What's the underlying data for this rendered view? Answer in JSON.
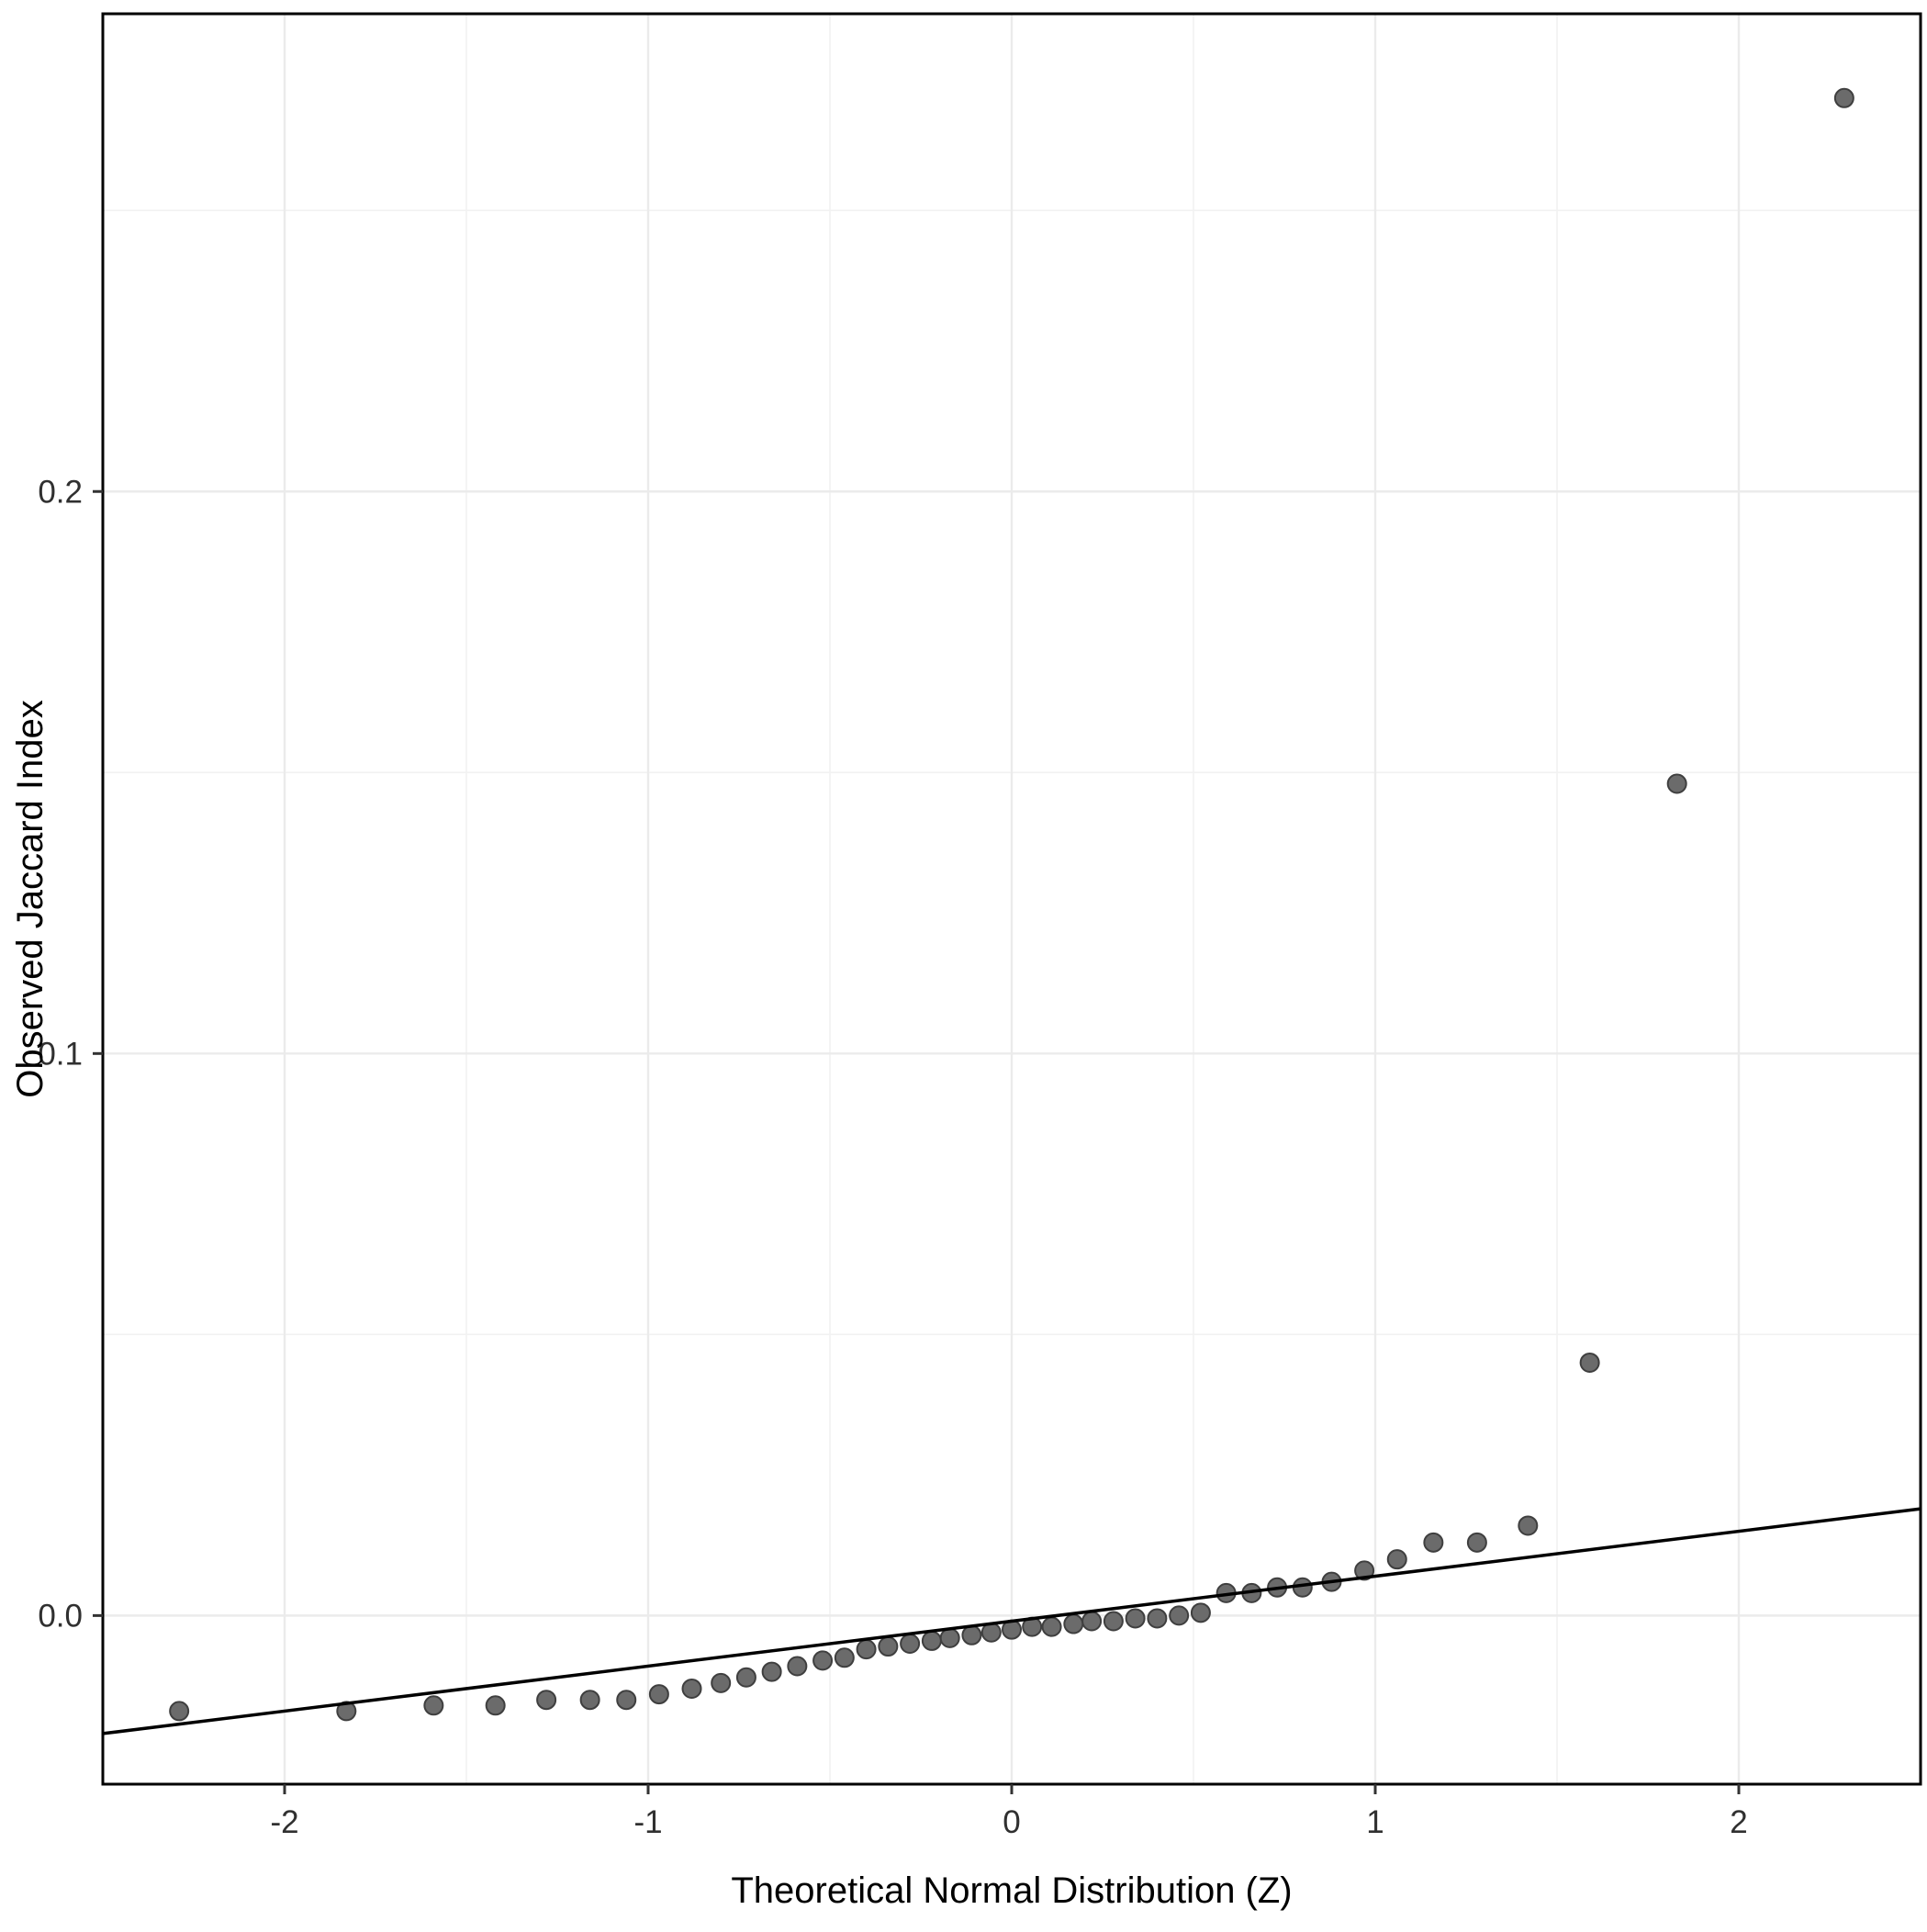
{
  "chart_data": {
    "type": "scatter",
    "title": "",
    "xlabel": "Theoretical Normal Distribution (Z)",
    "ylabel": "Observed Jaccard Index",
    "xlim": [
      -2.5,
      2.5
    ],
    "ylim": [
      -0.03,
      0.285
    ],
    "x_ticks": [
      -2,
      -1,
      0,
      1,
      2
    ],
    "x_tick_labels": [
      "-2",
      "-1",
      "0",
      "1",
      "2"
    ],
    "x_minor_ticks": [
      -1.5,
      -0.5,
      0.5,
      1.5
    ],
    "y_ticks": [
      0.0,
      0.1,
      0.2
    ],
    "y_tick_labels": [
      "0.0",
      "0.1",
      "0.2"
    ],
    "y_minor_ticks": [
      0.05,
      0.15,
      0.25
    ],
    "grid": "on",
    "legend": "none",
    "reference_line": {
      "slope": 0.008,
      "intercept": -0.001
    },
    "points": [
      [
        -2.29,
        -0.017
      ],
      [
        -1.83,
        -0.017
      ],
      [
        -1.59,
        -0.016
      ],
      [
        -1.42,
        -0.016
      ],
      [
        -1.28,
        -0.015
      ],
      [
        -1.16,
        -0.015
      ],
      [
        -1.06,
        -0.015
      ],
      [
        -0.97,
        -0.014
      ],
      [
        -0.88,
        -0.013
      ],
      [
        -0.8,
        -0.012
      ],
      [
        -0.73,
        -0.011
      ],
      [
        -0.66,
        -0.01
      ],
      [
        -0.59,
        -0.009
      ],
      [
        -0.52,
        -0.008
      ],
      [
        -0.46,
        -0.0075
      ],
      [
        -0.4,
        -0.006
      ],
      [
        -0.34,
        -0.0055
      ],
      [
        -0.28,
        -0.005
      ],
      [
        -0.22,
        -0.0045
      ],
      [
        -0.17,
        -0.004
      ],
      [
        -0.11,
        -0.0035
      ],
      [
        -0.056,
        -0.003
      ],
      [
        0.0,
        -0.0025
      ],
      [
        0.056,
        -0.002
      ],
      [
        0.11,
        -0.002
      ],
      [
        0.17,
        -0.0015
      ],
      [
        0.22,
        -0.001
      ],
      [
        0.28,
        -0.001
      ],
      [
        0.34,
        -0.0005
      ],
      [
        0.4,
        -0.0005
      ],
      [
        0.46,
        0.0
      ],
      [
        0.52,
        0.0005
      ],
      [
        0.59,
        0.004
      ],
      [
        0.66,
        0.004
      ],
      [
        0.73,
        0.005
      ],
      [
        0.8,
        0.005
      ],
      [
        0.88,
        0.006
      ],
      [
        0.97,
        0.008
      ],
      [
        1.06,
        0.01
      ],
      [
        1.16,
        0.013
      ],
      [
        1.28,
        0.013
      ],
      [
        1.42,
        0.016
      ],
      [
        1.59,
        0.045
      ],
      [
        1.83,
        0.148
      ],
      [
        2.29,
        0.27
      ]
    ],
    "colors": {
      "background": "#FFFFFF",
      "grid_major": "#EBEBEB",
      "grid_minor": "#F2F2F2",
      "panel_border": "#000000",
      "tick_mark": "#333333",
      "tick_label": "#303030",
      "axis_title": "#000000",
      "point_fill": "#6B6B6B",
      "point_stroke": "#3F3F3F",
      "reference_line": "#000000"
    }
  }
}
